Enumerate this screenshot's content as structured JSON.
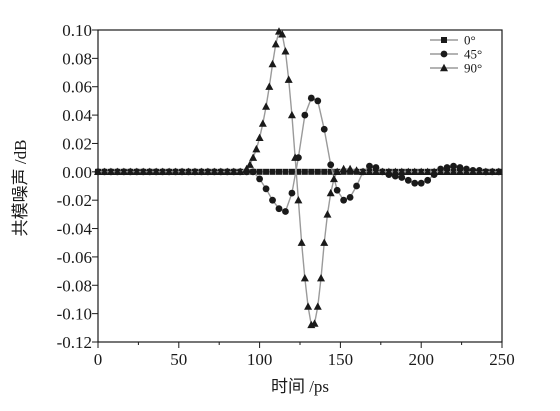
{
  "chart_data": {
    "type": "line",
    "title": "",
    "xlabel": "时间 /ps",
    "ylabel": "共模噪声 /dB",
    "xlim": [
      0,
      250
    ],
    "ylim": [
      -0.12,
      0.1
    ],
    "x_ticks": [
      0,
      50,
      100,
      150,
      200,
      250
    ],
    "y_ticks": [
      0.1,
      0.08,
      0.06,
      0.04,
      0.02,
      0.0,
      -0.02,
      -0.04,
      -0.06,
      -0.08,
      -0.1,
      -0.12
    ],
    "x_tick_labels": [
      "0",
      "50",
      "100",
      "150",
      "200",
      "250"
    ],
    "y_tick_labels": [
      "0.10",
      "0.08",
      "0.06",
      "0.04",
      "0.02",
      "0.00",
      "-0.02",
      "-0.04",
      "-0.06",
      "-0.08",
      "-0.10",
      "-0.12"
    ],
    "grid": false,
    "legend_position": "top-right",
    "colors": {
      "line": "#9a9a9a",
      "marker": "#1a1a1a",
      "axis": "#1a1a1a"
    },
    "series": [
      {
        "name": "0°",
        "marker": "square",
        "x": [
          0,
          4,
          8,
          12,
          16,
          20,
          24,
          28,
          32,
          36,
          40,
          44,
          48,
          52,
          56,
          60,
          64,
          68,
          72,
          76,
          80,
          84,
          88,
          92,
          96,
          100,
          104,
          108,
          112,
          116,
          120,
          124,
          128,
          132,
          136,
          140,
          144,
          148,
          152,
          156,
          160,
          164,
          168,
          172,
          176,
          180,
          184,
          188,
          192,
          196,
          200,
          204,
          208,
          212,
          216,
          220,
          224,
          228,
          232,
          236,
          240,
          244,
          248
        ],
        "y": [
          0,
          0,
          0,
          0,
          0,
          0,
          0,
          0,
          0,
          0,
          0,
          0,
          0,
          0,
          0,
          0,
          0,
          0,
          0,
          0,
          0,
          0,
          0,
          0,
          0,
          0,
          0,
          0,
          0,
          0,
          0,
          0,
          0,
          0,
          0,
          0,
          0,
          0,
          0,
          0,
          0,
          0,
          0,
          0,
          0,
          0,
          0,
          0,
          0,
          0,
          0,
          0,
          0,
          0,
          0,
          0,
          0,
          0,
          0,
          0,
          0,
          0,
          0
        ]
      },
      {
        "name": "45°",
        "marker": "circle",
        "x": [
          0,
          4,
          8,
          12,
          16,
          20,
          24,
          28,
          32,
          36,
          40,
          44,
          48,
          52,
          56,
          60,
          64,
          68,
          72,
          76,
          80,
          84,
          88,
          92,
          96,
          100,
          104,
          108,
          112,
          116,
          120,
          124,
          128,
          132,
          136,
          140,
          144,
          148,
          152,
          156,
          160,
          164,
          168,
          172,
          176,
          180,
          184,
          188,
          192,
          196,
          200,
          204,
          208,
          212,
          216,
          220,
          224,
          228,
          232,
          236,
          240,
          244,
          248
        ],
        "y": [
          0,
          0,
          0,
          0,
          0,
          0,
          0,
          0,
          0,
          0,
          0,
          0,
          0,
          0,
          0,
          0,
          0,
          0,
          0,
          0,
          0,
          0,
          0,
          0,
          0,
          -0.005,
          -0.012,
          -0.02,
          -0.026,
          -0.028,
          -0.015,
          0.01,
          0.04,
          0.052,
          0.05,
          0.03,
          0.005,
          -0.013,
          -0.02,
          -0.018,
          -0.01,
          0.0,
          0.004,
          0.003,
          0.0,
          -0.002,
          -0.003,
          -0.004,
          -0.006,
          -0.008,
          -0.008,
          -0.006,
          -0.002,
          0.002,
          0.003,
          0.004,
          0.003,
          0.002,
          0.001,
          0.001,
          0.0,
          0.0,
          0.0
        ]
      },
      {
        "name": "90°",
        "marker": "triangle",
        "x": [
          0,
          4,
          8,
          12,
          16,
          20,
          24,
          28,
          32,
          36,
          40,
          44,
          48,
          52,
          56,
          60,
          64,
          68,
          72,
          76,
          80,
          84,
          88,
          92,
          94,
          96,
          98,
          100,
          102,
          104,
          106,
          108,
          110,
          112,
          114,
          116,
          118,
          120,
          122,
          124,
          126,
          128,
          130,
          132,
          134,
          136,
          138,
          140,
          142,
          144,
          146,
          148,
          152,
          156,
          160,
          164,
          168,
          172,
          176,
          180,
          184,
          188,
          192,
          196,
          200,
          204,
          208,
          212,
          216,
          220,
          224,
          228,
          232,
          236,
          240,
          244,
          248
        ],
        "y": [
          0,
          0,
          0,
          0,
          0,
          0,
          0,
          0,
          0,
          0,
          0,
          0,
          0,
          0,
          0,
          0,
          0,
          0,
          0,
          0,
          0,
          0,
          0,
          0.002,
          0.005,
          0.01,
          0.016,
          0.024,
          0.034,
          0.046,
          0.06,
          0.076,
          0.09,
          0.099,
          0.097,
          0.085,
          0.065,
          0.04,
          0.01,
          -0.02,
          -0.05,
          -0.075,
          -0.095,
          -0.108,
          -0.107,
          -0.095,
          -0.075,
          -0.05,
          -0.03,
          -0.015,
          -0.005,
          0.0,
          0.002,
          0.002,
          0.001,
          0.0,
          0.0,
          0.0,
          0.0,
          0.0,
          0.0,
          0.0,
          0.0,
          0.0,
          0.0,
          0.0,
          0.0,
          0.0,
          0.0,
          0.0,
          0.0,
          0.0,
          0.0,
          0.0,
          0.0,
          0.0,
          0.0
        ]
      }
    ]
  }
}
